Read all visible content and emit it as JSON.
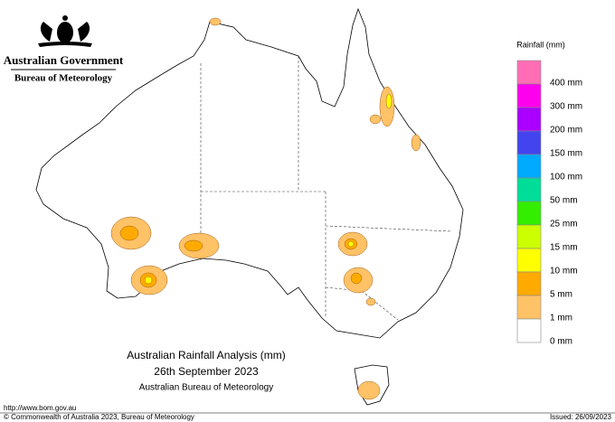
{
  "header": {
    "government": "Australian Government",
    "bureau": "Bureau of Meteorology"
  },
  "legend": {
    "title": "Rainfall (mm)",
    "colors": [
      "#ff6eb4",
      "#ff00ee",
      "#aa00ff",
      "#4444ee",
      "#00aaff",
      "#00dd99",
      "#33ee00",
      "#ccff00",
      "#ffff00",
      "#ffaa00",
      "#ffc266",
      "#ffffff"
    ],
    "labels": [
      "400 mm",
      "300 mm",
      "200 mm",
      "150 mm",
      "100 mm",
      "50 mm",
      "25 mm",
      "15 mm",
      "10 mm",
      "5 mm",
      "1 mm",
      "0 mm"
    ]
  },
  "map": {
    "title": "Australian Rainfall Analysis (mm)",
    "date": "26th September 2023",
    "agency": "Australian Bureau of Meteorology"
  },
  "footer": {
    "url": "http://www.bom.gov.au",
    "copyright": "© Commonwealth of Australia 2023, Bureau of Meteorology",
    "issued": "Issued: 26/09/2023"
  }
}
